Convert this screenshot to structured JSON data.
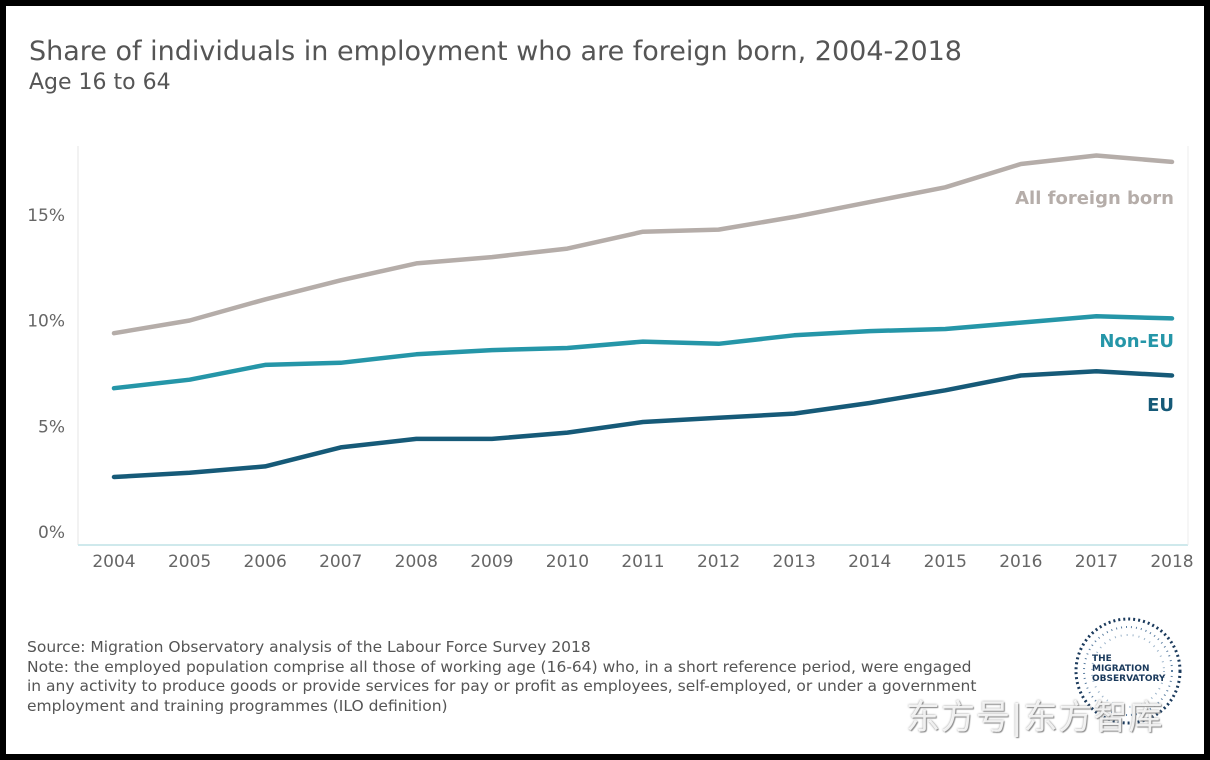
{
  "header": {
    "title": "Share of individuals in employment who are foreign born, 2004-2018",
    "subtitle": "Age 16 to 64"
  },
  "chart_data": {
    "type": "line",
    "x": [
      2004,
      2005,
      2006,
      2007,
      2008,
      2009,
      2010,
      2011,
      2012,
      2013,
      2014,
      2015,
      2016,
      2017,
      2018
    ],
    "ylim": [
      0,
      19
    ],
    "yticks": [
      0,
      5,
      10,
      15
    ],
    "ytick_labels": [
      "0%",
      "5%",
      "10%",
      "15%"
    ],
    "grid": false,
    "series": [
      {
        "name": "All foreign born",
        "color": "#b5ada9",
        "values": [
          9.4,
          10.0,
          11.0,
          11.9,
          12.7,
          13.0,
          13.4,
          14.2,
          14.3,
          14.9,
          15.6,
          16.3,
          17.4,
          17.8,
          17.5
        ]
      },
      {
        "name": "Non-EU",
        "color": "#2596a8",
        "values": [
          6.8,
          7.2,
          7.9,
          8.0,
          8.4,
          8.6,
          8.7,
          9.0,
          8.9,
          9.3,
          9.5,
          9.6,
          9.9,
          10.2,
          10.1
        ]
      },
      {
        "name": "EU",
        "color": "#165a78",
        "values": [
          2.6,
          2.8,
          3.1,
          4.0,
          4.4,
          4.4,
          4.7,
          5.2,
          5.4,
          5.6,
          6.1,
          6.7,
          7.4,
          7.6,
          7.4
        ]
      }
    ]
  },
  "footer": {
    "source": "Source: Migration Observatory analysis of the Labour Force Survey 2018",
    "note_lines": [
      "Note: the employed population comprise all those of working age (16-64) who, in a short reference period, were engaged",
      "in any activity to produce goods or provide services for pay or profit as employees, self-employed, or under a government",
      "employment and training programmes (ILO definition)"
    ]
  },
  "logo": {
    "text": "THE\nMIGRATION\nOBSERVATORY"
  },
  "watermark": {
    "text": "东方号|东方智库"
  }
}
